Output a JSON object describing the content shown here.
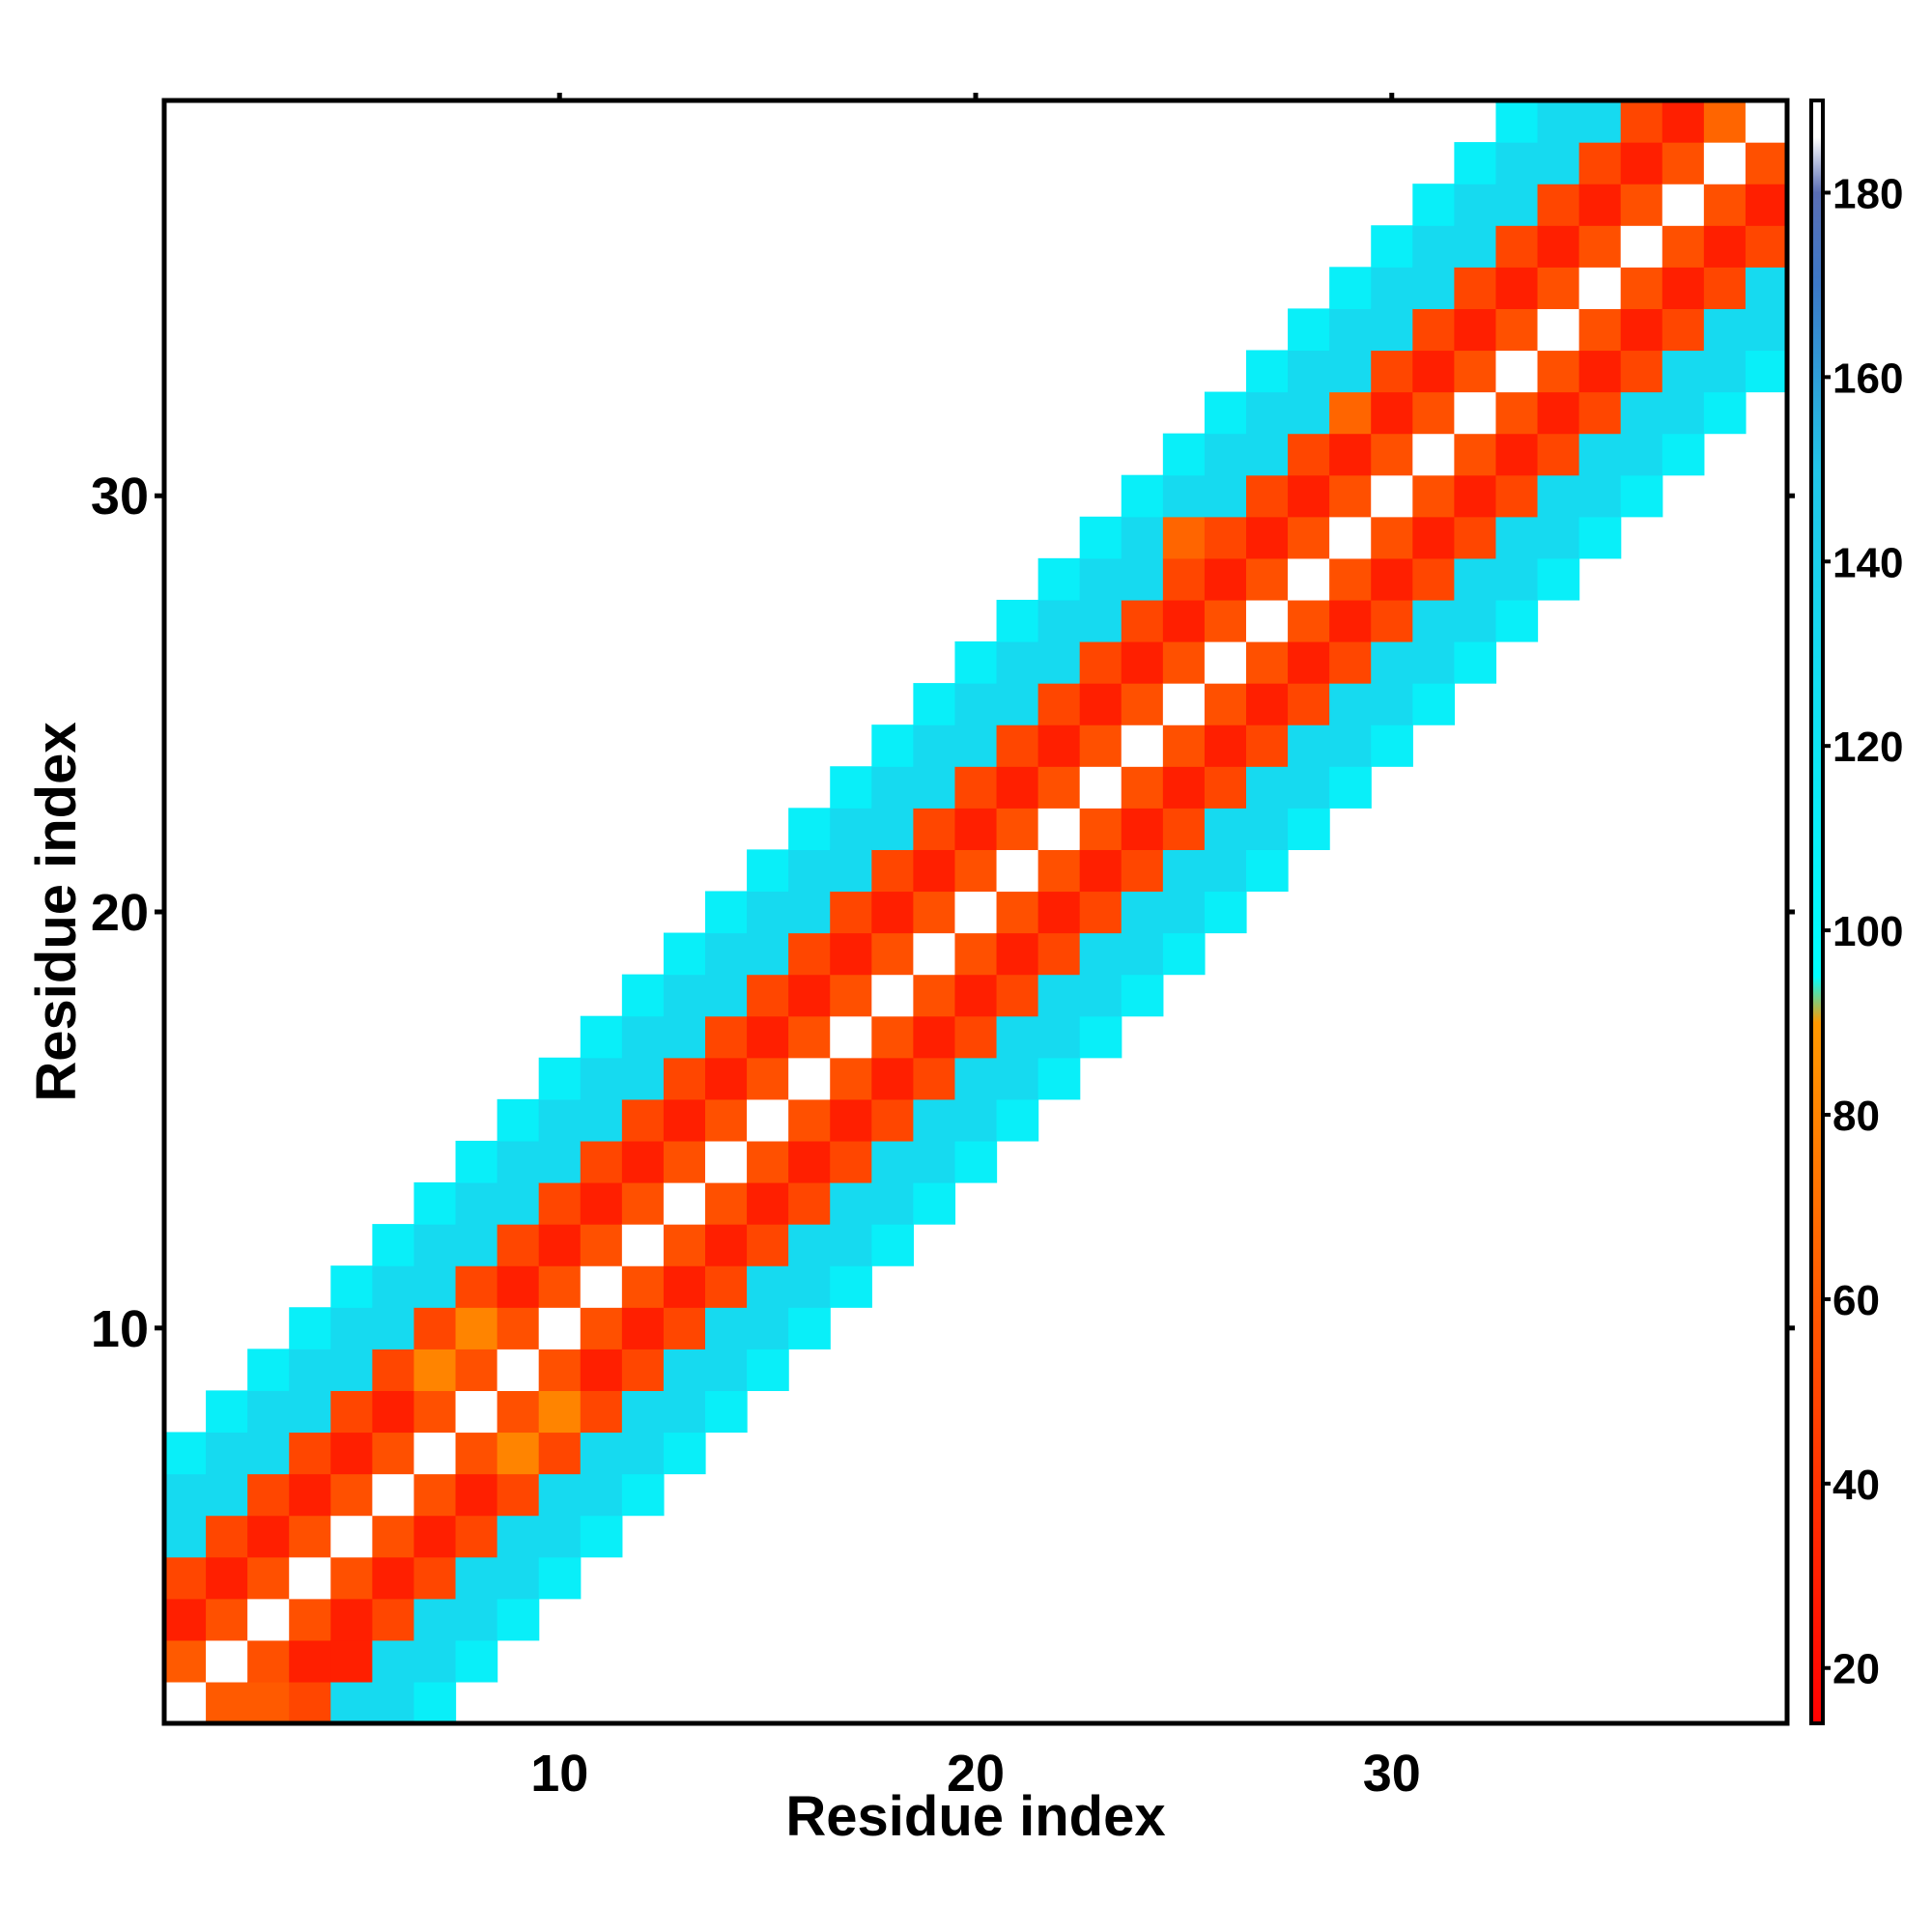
{
  "chart_data": {
    "type": "heatmap",
    "xlabel": "Residue index",
    "ylabel": "Residue index",
    "x_ticks": [
      10,
      20,
      30
    ],
    "y_ticks": [
      10,
      20,
      30
    ],
    "xlim": [
      0.5,
      39.5
    ],
    "ylim": [
      0.5,
      39.5
    ],
    "colorbar": {
      "range": [
        14,
        190
      ],
      "ticks": [
        20,
        40,
        60,
        80,
        100,
        120,
        140,
        160,
        180
      ],
      "stops": [
        {
          "value": 14,
          "color": "#ff0000"
        },
        {
          "value": 60,
          "color": "#ff5a00"
        },
        {
          "value": 90,
          "color": "#ff9900"
        },
        {
          "value": 95,
          "color": "#00ffff"
        },
        {
          "value": 150,
          "color": "#22c5e8"
        },
        {
          "value": 170,
          "color": "#3c78c8"
        },
        {
          "value": 180,
          "color": "#5a6eb4"
        },
        {
          "value": 186,
          "color": "#ffffff"
        },
        {
          "value": 190,
          "color": "#ffffff"
        }
      ]
    },
    "offset_values": {
      "description": "value at cell (i,j) by d=j-i (d=0 diagonal)",
      "0": 186,
      "1": 55,
      "2": 30,
      "3": 50,
      "4": 130,
      "5": 130,
      "6": 110
    },
    "overrides": [
      {
        "x": 1,
        "y": 2,
        "value": 60
      },
      {
        "x": 2,
        "y": 1,
        "value": 60
      },
      {
        "x": 3,
        "y": 1,
        "value": 60
      },
      {
        "x": 2,
        "y": 4,
        "value": 30
      },
      {
        "x": 4,
        "y": 2,
        "value": 30
      },
      {
        "x": 5,
        "y": 2,
        "value": 30
      },
      {
        "x": 7,
        "y": 9,
        "value": 80
      },
      {
        "x": 8,
        "y": 10,
        "value": 80
      },
      {
        "x": 9,
        "y": 7,
        "value": 80
      },
      {
        "x": 10,
        "y": 8,
        "value": 80
      },
      {
        "x": 29,
        "y": 32,
        "value": 65
      },
      {
        "x": 25,
        "y": 29,
        "value": 65
      },
      {
        "x": 38,
        "y": 39,
        "value": 65
      }
    ]
  }
}
